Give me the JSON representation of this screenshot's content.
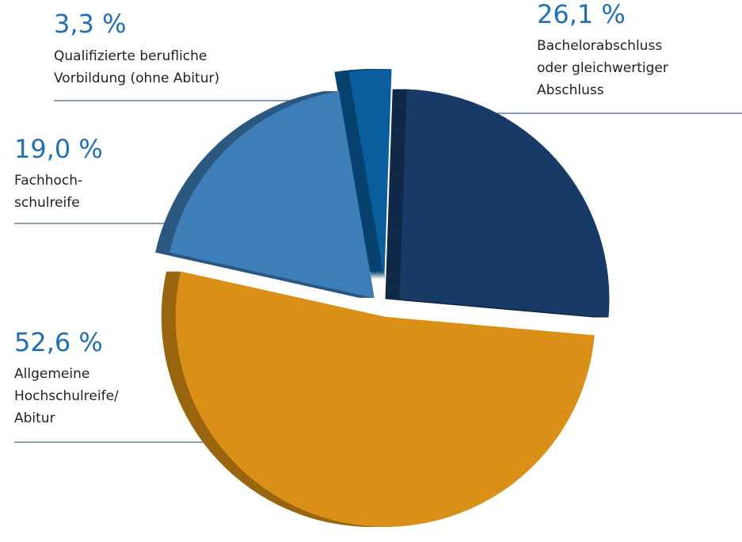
{
  "chart_data": {
    "type": "pie",
    "categories": [
      "Bachelorabschluss\noder gleichwertiger\nAbschluss",
      "Allgemeine\nHochschulreife/\nAbitur",
      "Fachhoch-\nschulreife",
      "Qualifizierte berufliche\nVorbildung (ohne Abitur)"
    ],
    "values": [
      26.1,
      52.6,
      19.0,
      3.3
    ],
    "value_labels": [
      "26,1 %",
      "52,6 %",
      "19,0 %",
      "3,3 %"
    ],
    "colors": [
      "#173a67",
      "#da9016",
      "#3d7db8",
      "#0a5e9e"
    ]
  }
}
